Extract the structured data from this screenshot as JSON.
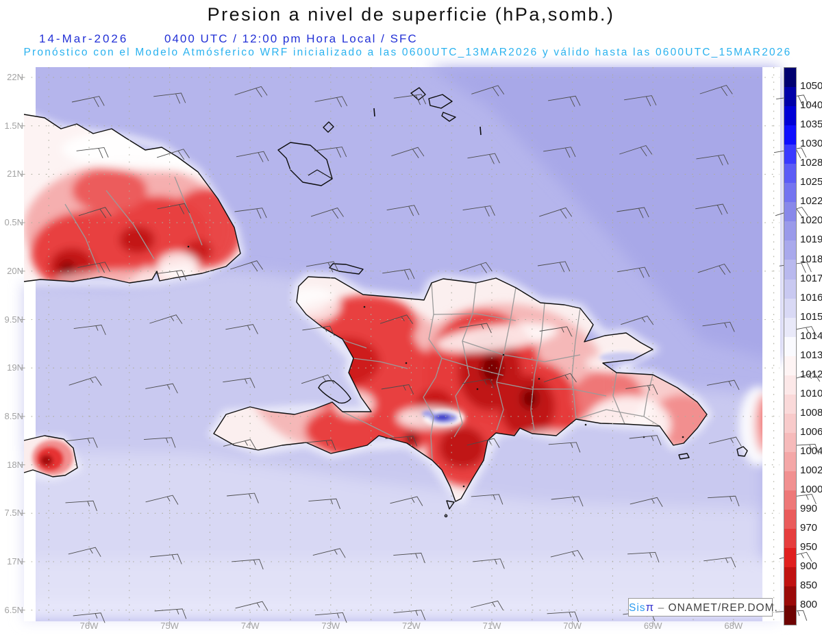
{
  "title": "Presion a nivel de superficie (hPa,somb.)",
  "subtitle": {
    "date": "14-Mar-2026",
    "time": "0400 UTC / 12:00 pm Hora Local / SFC",
    "model": "Pronóstico con el Modelo Atmósferico WRF inicializado a las 0600UTC_13MAR2026 y válido hasta las  0600UTC_15MAR2026"
  },
  "axes": {
    "lat_labels": [
      "22N",
      "1.5N",
      "21N",
      "0.5N",
      "20N",
      "9.5N",
      "19N",
      "8.5N",
      "18N",
      "7.5N",
      "17N",
      "6.5N"
    ],
    "lon_labels": [
      "76W",
      "75W",
      "74W",
      "73W",
      "72W",
      "71W",
      "70W",
      "69W",
      "68W"
    ]
  },
  "colorbar": {
    "tick_labels": [
      "1050",
      "1040",
      "1035",
      "1030",
      "1028",
      "1025",
      "1022",
      "1020",
      "1019",
      "1018",
      "1017",
      "1016",
      "1015",
      "1014",
      "1013",
      "1012",
      "1010",
      "1008",
      "1006",
      "1004",
      "1002",
      "1000",
      "990",
      "970",
      "950",
      "900",
      "850",
      "800"
    ],
    "segment_colors": [
      "#000070",
      "#0000A8",
      "#0000D6",
      "#0E0EFF",
      "#3A3AFF",
      "#5C5CF6",
      "#7474F0",
      "#8888EA",
      "#9A9AEA",
      "#A9A9EC",
      "#B9B9EE",
      "#C9C9F1",
      "#D9D9F5",
      "#E9E9F9",
      "#FAFAFE",
      "#FEF4F4",
      "#FCE8E8",
      "#FAD9D9",
      "#F8CACA",
      "#F6BABA",
      "#F4A7A7",
      "#F19090",
      "#EE7878",
      "#EA5C5C",
      "#E63E3E",
      "#E01F1F",
      "#C01111",
      "#9A0909",
      "#6E0303"
    ]
  },
  "attribution": {
    "product": "Sis",
    "pi": "π",
    "separator": "–",
    "org": "ONAMET/REP.DOM."
  },
  "colors": {
    "title_text": "#111111",
    "datetime_blue": "#2230D6",
    "model_cyan": "#2AB2EF",
    "axis_gray": "#A3A3A3",
    "ocean_base": "#B5B5EC",
    "ocean_high": "#A8A8E8",
    "ocean_low": "#D8D8F4",
    "land_low_pressure_red": "#E63E3E",
    "coastline": "#0D0D0D",
    "province_border": "#9A9A9A",
    "wind_barb": "#4B4B4B"
  }
}
